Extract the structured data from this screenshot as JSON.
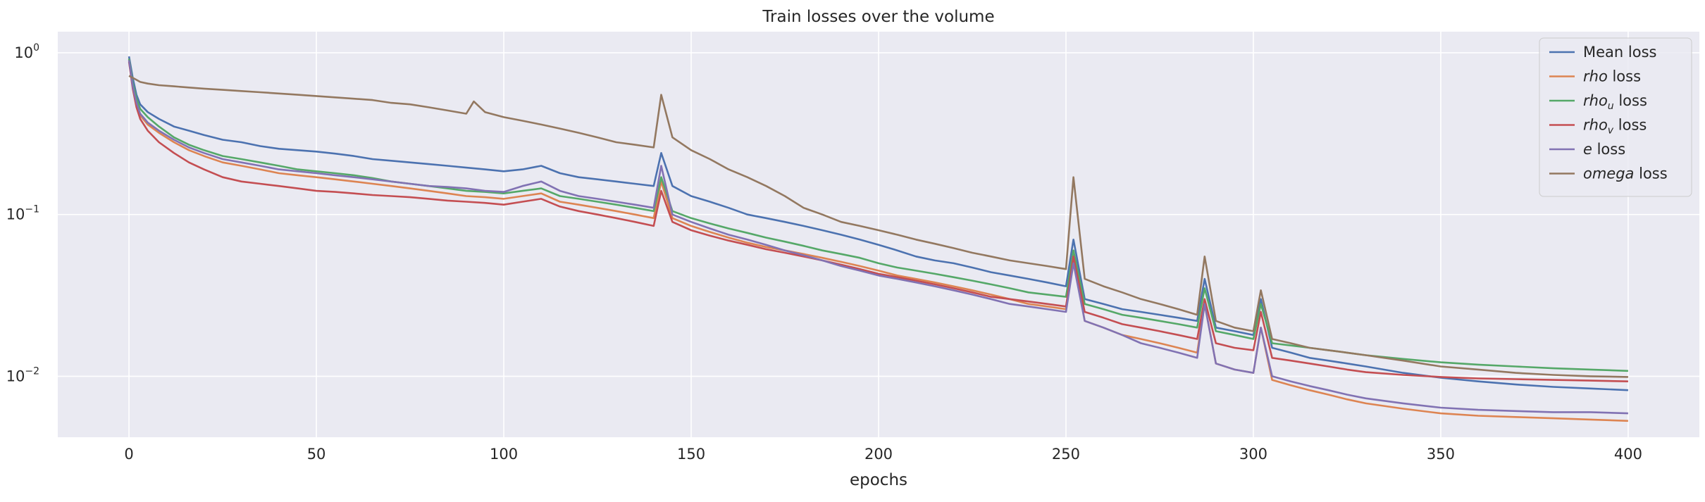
{
  "chart_data": {
    "type": "line",
    "title": "Train losses over the volume",
    "xlabel": "epochs",
    "ylabel": "",
    "yscale": "log",
    "xlim": [
      -19,
      419
    ],
    "ylim": [
      0.0042,
      1.35
    ],
    "grid": true,
    "legend_position": "top-right",
    "background": "#eaeaf2",
    "x_ticks": [
      {
        "value": 0,
        "label": "0"
      },
      {
        "value": 50,
        "label": "50"
      },
      {
        "value": 100,
        "label": "100"
      },
      {
        "value": 150,
        "label": "150"
      },
      {
        "value": 200,
        "label": "200"
      },
      {
        "value": 250,
        "label": "250"
      },
      {
        "value": 300,
        "label": "300"
      },
      {
        "value": 350,
        "label": "350"
      },
      {
        "value": 400,
        "label": "400"
      }
    ],
    "y_ticks": [
      {
        "value": 1,
        "base": "10",
        "exp": "0"
      },
      {
        "value": 0.1,
        "base": "10",
        "exp": "−1"
      },
      {
        "value": 0.01,
        "base": "10",
        "exp": "−2"
      }
    ],
    "series": [
      {
        "name": "Mean loss",
        "legend": {
          "pre": "Mean loss",
          "sub": "",
          "post": ""
        },
        "color": "#4c72b0",
        "x": [
          0,
          1,
          2,
          3,
          5,
          8,
          12,
          16,
          20,
          25,
          30,
          35,
          40,
          45,
          50,
          55,
          60,
          65,
          70,
          75,
          80,
          85,
          90,
          95,
          100,
          105,
          110,
          115,
          120,
          125,
          130,
          135,
          140,
          142,
          145,
          150,
          155,
          160,
          165,
          170,
          175,
          180,
          185,
          190,
          195,
          200,
          205,
          210,
          215,
          220,
          225,
          230,
          235,
          240,
          245,
          250,
          252,
          255,
          260,
          265,
          270,
          275,
          280,
          285,
          287,
          290,
          295,
          300,
          302,
          305,
          310,
          315,
          320,
          325,
          330,
          340,
          350,
          360,
          370,
          380,
          390,
          400
        ],
        "y": [
          0.95,
          0.7,
          0.55,
          0.48,
          0.43,
          0.39,
          0.35,
          0.33,
          0.31,
          0.29,
          0.28,
          0.265,
          0.255,
          0.25,
          0.245,
          0.238,
          0.23,
          0.22,
          0.215,
          0.21,
          0.205,
          0.2,
          0.195,
          0.19,
          0.185,
          0.19,
          0.2,
          0.18,
          0.17,
          0.165,
          0.16,
          0.155,
          0.15,
          0.24,
          0.15,
          0.13,
          0.12,
          0.11,
          0.1,
          0.095,
          0.09,
          0.085,
          0.08,
          0.075,
          0.07,
          0.065,
          0.06,
          0.055,
          0.052,
          0.05,
          0.047,
          0.044,
          0.042,
          0.04,
          0.038,
          0.036,
          0.07,
          0.03,
          0.028,
          0.026,
          0.025,
          0.024,
          0.023,
          0.022,
          0.04,
          0.02,
          0.019,
          0.018,
          0.03,
          0.015,
          0.014,
          0.013,
          0.0125,
          0.012,
          0.0115,
          0.0105,
          0.0098,
          0.0093,
          0.0089,
          0.0086,
          0.0084,
          0.0082
        ]
      },
      {
        "name": "rho loss",
        "legend": {
          "pre": "rho",
          "sub": "",
          "post": " loss"
        },
        "color": "#dd8452",
        "x": [
          0,
          1,
          2,
          3,
          5,
          8,
          12,
          16,
          20,
          25,
          30,
          35,
          40,
          45,
          50,
          55,
          60,
          65,
          70,
          75,
          80,
          85,
          90,
          95,
          100,
          105,
          110,
          115,
          120,
          125,
          130,
          135,
          140,
          142,
          145,
          150,
          155,
          160,
          165,
          170,
          175,
          180,
          185,
          190,
          195,
          200,
          205,
          210,
          215,
          220,
          225,
          230,
          235,
          240,
          245,
          250,
          252,
          255,
          260,
          265,
          270,
          275,
          280,
          285,
          287,
          290,
          295,
          300,
          302,
          305,
          310,
          315,
          320,
          325,
          330,
          340,
          350,
          360,
          370,
          380,
          390,
          400
        ],
        "y": [
          0.9,
          0.62,
          0.48,
          0.41,
          0.36,
          0.32,
          0.28,
          0.25,
          0.23,
          0.21,
          0.2,
          0.19,
          0.18,
          0.175,
          0.17,
          0.165,
          0.16,
          0.155,
          0.15,
          0.145,
          0.14,
          0.135,
          0.13,
          0.128,
          0.125,
          0.13,
          0.135,
          0.12,
          0.115,
          0.11,
          0.105,
          0.1,
          0.095,
          0.16,
          0.095,
          0.085,
          0.078,
          0.072,
          0.067,
          0.063,
          0.06,
          0.057,
          0.054,
          0.051,
          0.048,
          0.045,
          0.042,
          0.04,
          0.038,
          0.036,
          0.034,
          0.032,
          0.03,
          0.028,
          0.027,
          0.026,
          0.055,
          0.022,
          0.02,
          0.018,
          0.017,
          0.016,
          0.015,
          0.014,
          0.028,
          0.012,
          0.011,
          0.0105,
          0.02,
          0.0095,
          0.0088,
          0.0082,
          0.0077,
          0.0072,
          0.0068,
          0.0063,
          0.0059,
          0.0057,
          0.0056,
          0.0055,
          0.0054,
          0.0053
        ]
      },
      {
        "name": "rho_u loss",
        "legend": {
          "pre": "rho",
          "sub": "u",
          "post": " loss"
        },
        "color": "#55a868",
        "x": [
          0,
          1,
          2,
          3,
          5,
          8,
          12,
          16,
          20,
          25,
          30,
          35,
          40,
          45,
          50,
          55,
          60,
          65,
          70,
          75,
          80,
          85,
          90,
          95,
          100,
          105,
          110,
          115,
          120,
          125,
          130,
          135,
          140,
          142,
          145,
          150,
          155,
          160,
          165,
          170,
          175,
          180,
          185,
          190,
          195,
          200,
          205,
          210,
          215,
          220,
          225,
          230,
          235,
          240,
          245,
          250,
          252,
          255,
          260,
          265,
          270,
          275,
          280,
          285,
          287,
          290,
          295,
          300,
          302,
          305,
          310,
          315,
          320,
          325,
          330,
          340,
          350,
          360,
          370,
          380,
          390,
          400
        ],
        "y": [
          0.92,
          0.65,
          0.52,
          0.45,
          0.4,
          0.35,
          0.3,
          0.27,
          0.25,
          0.23,
          0.22,
          0.21,
          0.2,
          0.19,
          0.185,
          0.18,
          0.175,
          0.168,
          0.16,
          0.155,
          0.15,
          0.145,
          0.14,
          0.138,
          0.135,
          0.14,
          0.145,
          0.13,
          0.125,
          0.12,
          0.115,
          0.11,
          0.105,
          0.17,
          0.105,
          0.095,
          0.088,
          0.082,
          0.077,
          0.072,
          0.068,
          0.064,
          0.06,
          0.057,
          0.054,
          0.05,
          0.047,
          0.045,
          0.043,
          0.041,
          0.039,
          0.037,
          0.035,
          0.033,
          0.032,
          0.031,
          0.06,
          0.028,
          0.026,
          0.024,
          0.023,
          0.022,
          0.021,
          0.02,
          0.035,
          0.019,
          0.018,
          0.017,
          0.028,
          0.016,
          0.0155,
          0.015,
          0.0145,
          0.014,
          0.0135,
          0.0128,
          0.0122,
          0.0118,
          0.0115,
          0.0112,
          0.011,
          0.0108
        ]
      },
      {
        "name": "rho_v loss",
        "legend": {
          "pre": "rho",
          "sub": "v",
          "post": " loss"
        },
        "color": "#c44e52",
        "x": [
          0,
          1,
          2,
          3,
          5,
          8,
          12,
          16,
          20,
          25,
          30,
          35,
          40,
          45,
          50,
          55,
          60,
          65,
          70,
          75,
          80,
          85,
          90,
          95,
          100,
          105,
          110,
          115,
          120,
          125,
          130,
          135,
          140,
          142,
          145,
          150,
          155,
          160,
          165,
          170,
          175,
          180,
          185,
          190,
          195,
          200,
          205,
          210,
          215,
          220,
          225,
          230,
          235,
          240,
          245,
          250,
          252,
          255,
          260,
          265,
          270,
          275,
          280,
          285,
          287,
          290,
          295,
          300,
          302,
          305,
          310,
          315,
          320,
          325,
          330,
          340,
          350,
          360,
          370,
          380,
          390,
          400
        ],
        "y": [
          0.88,
          0.6,
          0.46,
          0.39,
          0.33,
          0.28,
          0.24,
          0.21,
          0.19,
          0.17,
          0.16,
          0.155,
          0.15,
          0.145,
          0.14,
          0.138,
          0.135,
          0.132,
          0.13,
          0.128,
          0.125,
          0.122,
          0.12,
          0.118,
          0.115,
          0.12,
          0.125,
          0.112,
          0.105,
          0.1,
          0.095,
          0.09,
          0.085,
          0.14,
          0.09,
          0.08,
          0.074,
          0.069,
          0.065,
          0.061,
          0.058,
          0.055,
          0.052,
          0.049,
          0.046,
          0.043,
          0.041,
          0.039,
          0.037,
          0.035,
          0.033,
          0.031,
          0.03,
          0.029,
          0.028,
          0.027,
          0.055,
          0.025,
          0.023,
          0.021,
          0.02,
          0.019,
          0.018,
          0.017,
          0.03,
          0.016,
          0.015,
          0.0145,
          0.025,
          0.013,
          0.0125,
          0.012,
          0.0115,
          0.011,
          0.0106,
          0.0102,
          0.0099,
          0.0097,
          0.0096,
          0.0095,
          0.0094,
          0.0093
        ]
      },
      {
        "name": "e loss",
        "legend": {
          "pre": "e",
          "sub": "",
          "post": " loss"
        },
        "color": "#8172b3",
        "x": [
          0,
          1,
          2,
          3,
          5,
          8,
          12,
          16,
          20,
          25,
          30,
          35,
          40,
          45,
          50,
          55,
          60,
          65,
          70,
          75,
          80,
          85,
          90,
          95,
          100,
          105,
          110,
          115,
          120,
          125,
          130,
          135,
          140,
          142,
          145,
          150,
          155,
          160,
          165,
          170,
          175,
          180,
          185,
          190,
          195,
          200,
          205,
          210,
          215,
          220,
          225,
          230,
          235,
          240,
          245,
          250,
          252,
          255,
          260,
          265,
          270,
          275,
          280,
          285,
          287,
          290,
          295,
          300,
          302,
          305,
          310,
          315,
          320,
          325,
          330,
          340,
          350,
          360,
          370,
          380,
          390,
          400
        ],
        "y": [
          0.9,
          0.62,
          0.49,
          0.42,
          0.37,
          0.33,
          0.29,
          0.26,
          0.24,
          0.22,
          0.21,
          0.2,
          0.19,
          0.185,
          0.18,
          0.175,
          0.17,
          0.165,
          0.16,
          0.155,
          0.15,
          0.148,
          0.145,
          0.14,
          0.138,
          0.15,
          0.16,
          0.14,
          0.13,
          0.125,
          0.12,
          0.115,
          0.11,
          0.2,
          0.1,
          0.09,
          0.082,
          0.075,
          0.07,
          0.065,
          0.06,
          0.056,
          0.052,
          0.048,
          0.045,
          0.042,
          0.04,
          0.038,
          0.036,
          0.034,
          0.032,
          0.03,
          0.028,
          0.027,
          0.026,
          0.025,
          0.05,
          0.022,
          0.02,
          0.018,
          0.016,
          0.015,
          0.014,
          0.013,
          0.028,
          0.012,
          0.011,
          0.0105,
          0.02,
          0.01,
          0.0093,
          0.0087,
          0.0082,
          0.0077,
          0.0073,
          0.0068,
          0.0064,
          0.0062,
          0.0061,
          0.006,
          0.006,
          0.0059
        ]
      },
      {
        "name": "omega loss",
        "legend": {
          "pre": "omega",
          "sub": "",
          "post": " loss"
        },
        "color": "#937860",
        "x": [
          0,
          1,
          2,
          3,
          5,
          8,
          12,
          16,
          20,
          25,
          30,
          35,
          40,
          45,
          50,
          55,
          60,
          65,
          70,
          75,
          80,
          85,
          90,
          92,
          95,
          100,
          105,
          110,
          115,
          120,
          125,
          130,
          135,
          140,
          142,
          145,
          150,
          155,
          160,
          165,
          170,
          175,
          180,
          185,
          190,
          195,
          200,
          205,
          210,
          215,
          220,
          225,
          230,
          235,
          240,
          245,
          250,
          252,
          255,
          260,
          265,
          270,
          275,
          280,
          285,
          287,
          290,
          295,
          300,
          302,
          305,
          310,
          315,
          320,
          325,
          330,
          340,
          350,
          360,
          370,
          380,
          390,
          400
        ],
        "y": [
          0.72,
          0.7,
          0.68,
          0.66,
          0.645,
          0.63,
          0.62,
          0.61,
          0.6,
          0.59,
          0.58,
          0.57,
          0.56,
          0.55,
          0.54,
          0.53,
          0.52,
          0.51,
          0.49,
          0.48,
          0.46,
          0.44,
          0.42,
          0.5,
          0.43,
          0.4,
          0.38,
          0.36,
          0.34,
          0.32,
          0.3,
          0.28,
          0.27,
          0.26,
          0.55,
          0.3,
          0.25,
          0.22,
          0.19,
          0.17,
          0.15,
          0.13,
          0.11,
          0.1,
          0.09,
          0.085,
          0.08,
          0.075,
          0.07,
          0.066,
          0.062,
          0.058,
          0.055,
          0.052,
          0.05,
          0.048,
          0.046,
          0.17,
          0.04,
          0.036,
          0.033,
          0.03,
          0.028,
          0.026,
          0.024,
          0.055,
          0.022,
          0.02,
          0.019,
          0.034,
          0.017,
          0.016,
          0.015,
          0.0145,
          0.014,
          0.0135,
          0.0125,
          0.0115,
          0.011,
          0.0105,
          0.0102,
          0.01,
          0.0099
        ]
      }
    ]
  }
}
